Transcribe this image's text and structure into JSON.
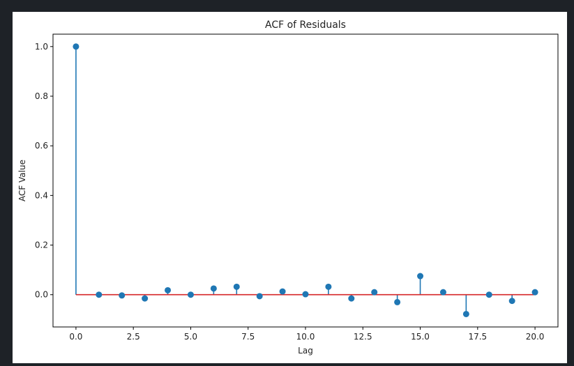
{
  "chart_data": {
    "type": "stem",
    "title": "ACF of Residuals",
    "xlabel": "Lag",
    "ylabel": "ACF Value",
    "xlim": [
      -1,
      21
    ],
    "ylim": [
      -0.13,
      1.05
    ],
    "xticks": [
      0.0,
      2.5,
      5.0,
      7.5,
      10.0,
      12.5,
      15.0,
      17.5,
      20.0
    ],
    "xtick_labels": [
      "0.0",
      "2.5",
      "5.0",
      "7.5",
      "10.0",
      "12.5",
      "15.0",
      "17.5",
      "20.0"
    ],
    "yticks": [
      0.0,
      0.2,
      0.4,
      0.6,
      0.8,
      1.0
    ],
    "ytick_labels": [
      "0.0",
      "0.2",
      "0.4",
      "0.6",
      "0.8",
      "1.0"
    ],
    "grid": false,
    "colors": {
      "stem": "#1f77b4",
      "baseline": "#d62728"
    },
    "x": [
      0,
      1,
      2,
      3,
      4,
      5,
      6,
      7,
      8,
      9,
      10,
      11,
      12,
      13,
      14,
      15,
      16,
      17,
      18,
      19,
      20
    ],
    "values": [
      1.0,
      0.0,
      -0.003,
      -0.015,
      0.018,
      0.0,
      0.025,
      0.032,
      -0.006,
      0.013,
      0.002,
      0.032,
      -0.015,
      0.01,
      -0.03,
      0.075,
      0.01,
      -0.078,
      0.0,
      -0.025,
      0.01
    ]
  }
}
